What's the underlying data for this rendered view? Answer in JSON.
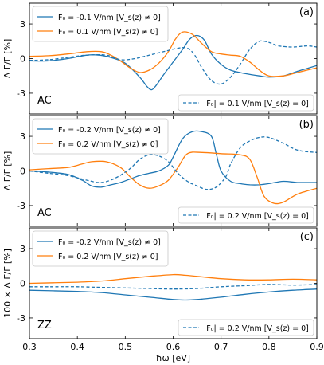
{
  "chart_data": [
    {
      "type": "line",
      "panel_label": "(a)",
      "corner_label": "AC",
      "xlim": [
        0.3,
        0.9
      ],
      "ylim": [
        -4.8,
        4.8
      ],
      "y_ticks": [
        "-3",
        "0",
        "3"
      ],
      "ylabel": "Δ Γ/Γ [%]",
      "legend": {
        "placement": "top-left"
      },
      "legend_bottom": {
        "placement": "bottom-right"
      },
      "series": [
        {
          "name": "F₀ = -0.1 V/nm [V_s(z) ≠ 0]",
          "color": "#1f77b4",
          "dash": false,
          "legend": "top",
          "x": [
            0.3,
            0.34,
            0.38,
            0.42,
            0.445,
            0.47,
            0.5,
            0.53,
            0.545,
            0.555,
            0.565,
            0.58,
            0.6,
            0.62,
            0.635,
            0.65,
            0.665,
            0.68,
            0.7,
            0.72,
            0.75,
            0.78,
            0.8,
            0.83,
            0.86,
            0.9
          ],
          "y": [
            -0.2,
            -0.2,
            0.0,
            0.3,
            0.3,
            0.1,
            -0.4,
            -1.6,
            -2.4,
            -2.7,
            -2.3,
            -1.4,
            -0.3,
            0.8,
            1.7,
            2.0,
            1.6,
            0.4,
            -0.5,
            -1.0,
            -1.3,
            -1.5,
            -1.6,
            -1.5,
            -1.1,
            -0.6
          ]
        },
        {
          "name": "F₀ = 0.1 V/nm [V_s(z) ≠ 0]",
          "color": "#ff7f0e",
          "dash": false,
          "legend": "top",
          "x": [
            0.3,
            0.34,
            0.38,
            0.42,
            0.45,
            0.47,
            0.49,
            0.51,
            0.53,
            0.55,
            0.57,
            0.59,
            0.605,
            0.62,
            0.64,
            0.66,
            0.68,
            0.7,
            0.72,
            0.74,
            0.76,
            0.78,
            0.8,
            0.83,
            0.86,
            0.9
          ],
          "y": [
            0.2,
            0.25,
            0.4,
            0.6,
            0.6,
            0.3,
            -0.2,
            -0.8,
            -1.2,
            -1.0,
            -0.4,
            0.6,
            1.7,
            2.3,
            2.1,
            1.3,
            0.6,
            0.4,
            0.3,
            0.2,
            -0.3,
            -1.0,
            -1.5,
            -1.5,
            -1.2,
            -0.8
          ]
        },
        {
          "name": "|F₀| = 0.1 V/nm [V_s(z) = 0]",
          "color": "#1f77b4",
          "dash": true,
          "legend": "bottom",
          "x": [
            0.3,
            0.34,
            0.38,
            0.42,
            0.46,
            0.49,
            0.52,
            0.55,
            0.58,
            0.61,
            0.63,
            0.645,
            0.66,
            0.68,
            0.7,
            0.72,
            0.74,
            0.76,
            0.78,
            0.8,
            0.82,
            0.85,
            0.88,
            0.9
          ],
          "y": [
            -0.15,
            -0.1,
            0.1,
            0.3,
            0.3,
            -0.1,
            0.0,
            0.3,
            0.6,
            0.9,
            0.9,
            0.3,
            -0.8,
            -1.9,
            -2.2,
            -1.6,
            -0.5,
            0.8,
            1.5,
            1.4,
            1.1,
            1.0,
            1.1,
            1.0
          ]
        }
      ]
    },
    {
      "type": "line",
      "panel_label": "(b)",
      "corner_label": "AC",
      "xlim": [
        0.3,
        0.9
      ],
      "ylim": [
        -4.8,
        4.8
      ],
      "y_ticks": [
        "-3",
        "0",
        "3"
      ],
      "ylabel": "Δ Γ/Γ [%]",
      "legend": {
        "placement": "top-left"
      },
      "legend_bottom": {
        "placement": "bottom-right"
      },
      "series": [
        {
          "name": "F₀ = -0.2 V/nm [V_s(z) ≠ 0]",
          "color": "#1f77b4",
          "dash": false,
          "legend": "top",
          "x": [
            0.3,
            0.34,
            0.38,
            0.41,
            0.43,
            0.45,
            0.47,
            0.49,
            0.51,
            0.53,
            0.55,
            0.57,
            0.59,
            0.6,
            0.62,
            0.64,
            0.66,
            0.68,
            0.69,
            0.7,
            0.72,
            0.74,
            0.76,
            0.78,
            0.8,
            0.83,
            0.86,
            0.9
          ],
          "y": [
            0.0,
            -0.1,
            -0.3,
            -0.8,
            -1.3,
            -1.4,
            -1.2,
            -1.0,
            -0.7,
            -0.4,
            -0.2,
            0.0,
            0.5,
            1.2,
            2.8,
            3.4,
            3.4,
            3.0,
            1.5,
            0.0,
            -0.9,
            -1.1,
            -1.2,
            -1.2,
            -1.1,
            -0.9,
            -1.0,
            -1.0
          ]
        },
        {
          "name": "F₀ = 0.2 V/nm [V_s(z) ≠ 0]",
          "color": "#ff7f0e",
          "dash": false,
          "legend": "top",
          "x": [
            0.3,
            0.34,
            0.38,
            0.41,
            0.43,
            0.46,
            0.49,
            0.51,
            0.53,
            0.55,
            0.57,
            0.59,
            0.61,
            0.63,
            0.66,
            0.7,
            0.74,
            0.76,
            0.775,
            0.79,
            0.81,
            0.83,
            0.86,
            0.9
          ],
          "y": [
            0.1,
            0.2,
            0.3,
            0.6,
            0.8,
            0.8,
            0.3,
            -0.5,
            -1.2,
            -1.5,
            -1.3,
            -0.8,
            0.3,
            1.5,
            1.6,
            1.5,
            1.4,
            1.0,
            -0.5,
            -2.2,
            -2.8,
            -2.7,
            -2.0,
            -1.5
          ]
        },
        {
          "name": "|F₀| = 0.2 V/nm [V_s(z) = 0]",
          "color": "#1f77b4",
          "dash": true,
          "legend": "bottom",
          "x": [
            0.3,
            0.34,
            0.38,
            0.42,
            0.45,
            0.48,
            0.51,
            0.53,
            0.55,
            0.57,
            0.59,
            0.61,
            0.63,
            0.65,
            0.67,
            0.69,
            0.71,
            0.72,
            0.74,
            0.76,
            0.78,
            0.8,
            0.83,
            0.86,
            0.9
          ],
          "y": [
            0.0,
            -0.2,
            -0.4,
            -0.8,
            -1.0,
            -0.6,
            0.2,
            1.0,
            1.4,
            1.3,
            0.8,
            -0.2,
            -0.9,
            -1.3,
            -1.6,
            -1.4,
            -0.5,
            0.6,
            2.0,
            2.6,
            2.9,
            2.9,
            2.4,
            1.8,
            1.6
          ]
        }
      ]
    },
    {
      "type": "line",
      "panel_label": "(c)",
      "corner_label": "ZZ",
      "xlim": [
        0.3,
        0.9
      ],
      "ylim": [
        -4.8,
        4.8
      ],
      "y_ticks": [
        "-3",
        "0",
        "3"
      ],
      "ylabel": "100 × Δ Γ/Γ [%]",
      "xlabel": "ħω [eV]",
      "x_ticks": [
        "0.3",
        "0.4",
        "0.5",
        "0.6",
        "0.7",
        "0.8",
        "0.9"
      ],
      "legend": {
        "placement": "top-left"
      },
      "legend_bottom": {
        "placement": "bottom-right"
      },
      "series": [
        {
          "name": "F₀ = -0.2 V/nm [V_s(z) ≠ 0]",
          "color": "#1f77b4",
          "dash": false,
          "legend": "top",
          "x": [
            0.3,
            0.35,
            0.4,
            0.45,
            0.5,
            0.55,
            0.6,
            0.625,
            0.65,
            0.7,
            0.75,
            0.8,
            0.85,
            0.9
          ],
          "y": [
            -0.6,
            -0.65,
            -0.7,
            -0.8,
            -1.0,
            -1.2,
            -1.4,
            -1.45,
            -1.4,
            -1.2,
            -0.95,
            -0.75,
            -0.6,
            -0.5
          ]
        },
        {
          "name": "F₀ = 0.2 V/nm [V_s(z) ≠ 0]",
          "color": "#ff7f0e",
          "dash": false,
          "legend": "top",
          "x": [
            0.3,
            0.35,
            0.4,
            0.45,
            0.5,
            0.55,
            0.6,
            0.625,
            0.65,
            0.7,
            0.75,
            0.8,
            0.85,
            0.9
          ],
          "y": [
            0.0,
            0.05,
            0.1,
            0.2,
            0.4,
            0.6,
            0.75,
            0.7,
            0.6,
            0.4,
            0.3,
            0.3,
            0.35,
            0.3
          ]
        },
        {
          "name": "|F₀| = 0.2 V/nm [V_s(z) = 0]",
          "color": "#1f77b4",
          "dash": true,
          "legend": "bottom",
          "x": [
            0.3,
            0.35,
            0.4,
            0.45,
            0.5,
            0.55,
            0.6,
            0.65,
            0.7,
            0.75,
            0.8,
            0.85,
            0.9
          ],
          "y": [
            -0.3,
            -0.3,
            -0.3,
            -0.35,
            -0.4,
            -0.45,
            -0.5,
            -0.45,
            -0.3,
            -0.2,
            -0.1,
            -0.15,
            -0.1
          ]
        }
      ]
    }
  ]
}
